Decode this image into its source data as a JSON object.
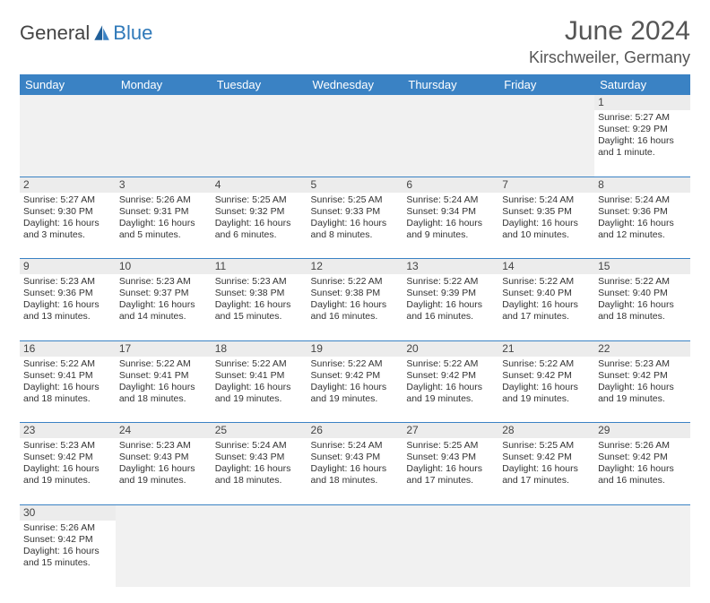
{
  "brand": {
    "part1": "General",
    "part2": "Blue"
  },
  "title": "June 2024",
  "location": "Kirschweiler, Germany",
  "colors": {
    "header_bg": "#3a82c4",
    "header_fg": "#ffffff",
    "daynum_bg": "#ececec",
    "rule": "#3a82c4"
  },
  "dayNames": [
    "Sunday",
    "Monday",
    "Tuesday",
    "Wednesday",
    "Thursday",
    "Friday",
    "Saturday"
  ],
  "weeks": [
    [
      null,
      null,
      null,
      null,
      null,
      null,
      {
        "n": "1",
        "sunrise": "Sunrise: 5:27 AM",
        "sunset": "Sunset: 9:29 PM",
        "daylight": "Daylight: 16 hours and 1 minute."
      }
    ],
    [
      {
        "n": "2",
        "sunrise": "Sunrise: 5:27 AM",
        "sunset": "Sunset: 9:30 PM",
        "daylight": "Daylight: 16 hours and 3 minutes."
      },
      {
        "n": "3",
        "sunrise": "Sunrise: 5:26 AM",
        "sunset": "Sunset: 9:31 PM",
        "daylight": "Daylight: 16 hours and 5 minutes."
      },
      {
        "n": "4",
        "sunrise": "Sunrise: 5:25 AM",
        "sunset": "Sunset: 9:32 PM",
        "daylight": "Daylight: 16 hours and 6 minutes."
      },
      {
        "n": "5",
        "sunrise": "Sunrise: 5:25 AM",
        "sunset": "Sunset: 9:33 PM",
        "daylight": "Daylight: 16 hours and 8 minutes."
      },
      {
        "n": "6",
        "sunrise": "Sunrise: 5:24 AM",
        "sunset": "Sunset: 9:34 PM",
        "daylight": "Daylight: 16 hours and 9 minutes."
      },
      {
        "n": "7",
        "sunrise": "Sunrise: 5:24 AM",
        "sunset": "Sunset: 9:35 PM",
        "daylight": "Daylight: 16 hours and 10 minutes."
      },
      {
        "n": "8",
        "sunrise": "Sunrise: 5:24 AM",
        "sunset": "Sunset: 9:36 PM",
        "daylight": "Daylight: 16 hours and 12 minutes."
      }
    ],
    [
      {
        "n": "9",
        "sunrise": "Sunrise: 5:23 AM",
        "sunset": "Sunset: 9:36 PM",
        "daylight": "Daylight: 16 hours and 13 minutes."
      },
      {
        "n": "10",
        "sunrise": "Sunrise: 5:23 AM",
        "sunset": "Sunset: 9:37 PM",
        "daylight": "Daylight: 16 hours and 14 minutes."
      },
      {
        "n": "11",
        "sunrise": "Sunrise: 5:23 AM",
        "sunset": "Sunset: 9:38 PM",
        "daylight": "Daylight: 16 hours and 15 minutes."
      },
      {
        "n": "12",
        "sunrise": "Sunrise: 5:22 AM",
        "sunset": "Sunset: 9:38 PM",
        "daylight": "Daylight: 16 hours and 16 minutes."
      },
      {
        "n": "13",
        "sunrise": "Sunrise: 5:22 AM",
        "sunset": "Sunset: 9:39 PM",
        "daylight": "Daylight: 16 hours and 16 minutes."
      },
      {
        "n": "14",
        "sunrise": "Sunrise: 5:22 AM",
        "sunset": "Sunset: 9:40 PM",
        "daylight": "Daylight: 16 hours and 17 minutes."
      },
      {
        "n": "15",
        "sunrise": "Sunrise: 5:22 AM",
        "sunset": "Sunset: 9:40 PM",
        "daylight": "Daylight: 16 hours and 18 minutes."
      }
    ],
    [
      {
        "n": "16",
        "sunrise": "Sunrise: 5:22 AM",
        "sunset": "Sunset: 9:41 PM",
        "daylight": "Daylight: 16 hours and 18 minutes."
      },
      {
        "n": "17",
        "sunrise": "Sunrise: 5:22 AM",
        "sunset": "Sunset: 9:41 PM",
        "daylight": "Daylight: 16 hours and 18 minutes."
      },
      {
        "n": "18",
        "sunrise": "Sunrise: 5:22 AM",
        "sunset": "Sunset: 9:41 PM",
        "daylight": "Daylight: 16 hours and 19 minutes."
      },
      {
        "n": "19",
        "sunrise": "Sunrise: 5:22 AM",
        "sunset": "Sunset: 9:42 PM",
        "daylight": "Daylight: 16 hours and 19 minutes."
      },
      {
        "n": "20",
        "sunrise": "Sunrise: 5:22 AM",
        "sunset": "Sunset: 9:42 PM",
        "daylight": "Daylight: 16 hours and 19 minutes."
      },
      {
        "n": "21",
        "sunrise": "Sunrise: 5:22 AM",
        "sunset": "Sunset: 9:42 PM",
        "daylight": "Daylight: 16 hours and 19 minutes."
      },
      {
        "n": "22",
        "sunrise": "Sunrise: 5:23 AM",
        "sunset": "Sunset: 9:42 PM",
        "daylight": "Daylight: 16 hours and 19 minutes."
      }
    ],
    [
      {
        "n": "23",
        "sunrise": "Sunrise: 5:23 AM",
        "sunset": "Sunset: 9:42 PM",
        "daylight": "Daylight: 16 hours and 19 minutes."
      },
      {
        "n": "24",
        "sunrise": "Sunrise: 5:23 AM",
        "sunset": "Sunset: 9:43 PM",
        "daylight": "Daylight: 16 hours and 19 minutes."
      },
      {
        "n": "25",
        "sunrise": "Sunrise: 5:24 AM",
        "sunset": "Sunset: 9:43 PM",
        "daylight": "Daylight: 16 hours and 18 minutes."
      },
      {
        "n": "26",
        "sunrise": "Sunrise: 5:24 AM",
        "sunset": "Sunset: 9:43 PM",
        "daylight": "Daylight: 16 hours and 18 minutes."
      },
      {
        "n": "27",
        "sunrise": "Sunrise: 5:25 AM",
        "sunset": "Sunset: 9:43 PM",
        "daylight": "Daylight: 16 hours and 17 minutes."
      },
      {
        "n": "28",
        "sunrise": "Sunrise: 5:25 AM",
        "sunset": "Sunset: 9:42 PM",
        "daylight": "Daylight: 16 hours and 17 minutes."
      },
      {
        "n": "29",
        "sunrise": "Sunrise: 5:26 AM",
        "sunset": "Sunset: 9:42 PM",
        "daylight": "Daylight: 16 hours and 16 minutes."
      }
    ],
    [
      {
        "n": "30",
        "sunrise": "Sunrise: 5:26 AM",
        "sunset": "Sunset: 9:42 PM",
        "daylight": "Daylight: 16 hours and 15 minutes."
      },
      null,
      null,
      null,
      null,
      null,
      null
    ]
  ]
}
